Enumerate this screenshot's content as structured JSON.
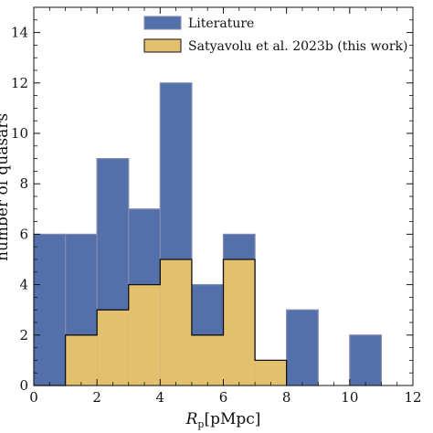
{
  "chart_data": {
    "type": "histogram",
    "xlabel": "R_p [pMpc]",
    "xlabel_main": "R",
    "xlabel_sub": "p",
    "xlabel_unit": "[pMpc]",
    "ylabel": "number of quasars",
    "xlim": [
      0,
      12
    ],
    "ylim": [
      0,
      15
    ],
    "xticks": [
      0,
      2,
      4,
      6,
      8,
      10,
      12
    ],
    "yticks": [
      0,
      2,
      4,
      6,
      8,
      10,
      12,
      14
    ],
    "grid": false,
    "legend_position": "top-center",
    "series": [
      {
        "name": "Literature",
        "color": "#5470ab",
        "edge": "#7f8cb0",
        "bins": [
          {
            "x0": 0,
            "x1": 1,
            "count": 6
          },
          {
            "x0": 1,
            "x1": 2,
            "count": 6
          },
          {
            "x0": 2,
            "x1": 3,
            "count": 9
          },
          {
            "x0": 3,
            "x1": 4,
            "count": 7
          },
          {
            "x0": 4,
            "x1": 5,
            "count": 12
          },
          {
            "x0": 5,
            "x1": 6,
            "count": 4
          },
          {
            "x0": 6,
            "x1": 7,
            "count": 6
          },
          {
            "x0": 7,
            "x1": 8,
            "count": 0
          },
          {
            "x0": 8,
            "x1": 9,
            "count": 3
          },
          {
            "x0": 9,
            "x1": 10,
            "count": 0
          },
          {
            "x0": 10,
            "x1": 11,
            "count": 2
          }
        ]
      },
      {
        "name": "Satyavolu et al. 2023b (this work)",
        "color": "#e3c06e",
        "edge": "#111111",
        "bins": [
          {
            "x0": 0,
            "x1": 1,
            "count": 0
          },
          {
            "x0": 1,
            "x1": 2,
            "count": 2
          },
          {
            "x0": 2,
            "x1": 3,
            "count": 3
          },
          {
            "x0": 3,
            "x1": 4,
            "count": 4
          },
          {
            "x0": 4,
            "x1": 5,
            "count": 5
          },
          {
            "x0": 5,
            "x1": 6,
            "count": 2
          },
          {
            "x0": 6,
            "x1": 7,
            "count": 5
          },
          {
            "x0": 7,
            "x1": 8,
            "count": 1
          }
        ]
      }
    ]
  }
}
